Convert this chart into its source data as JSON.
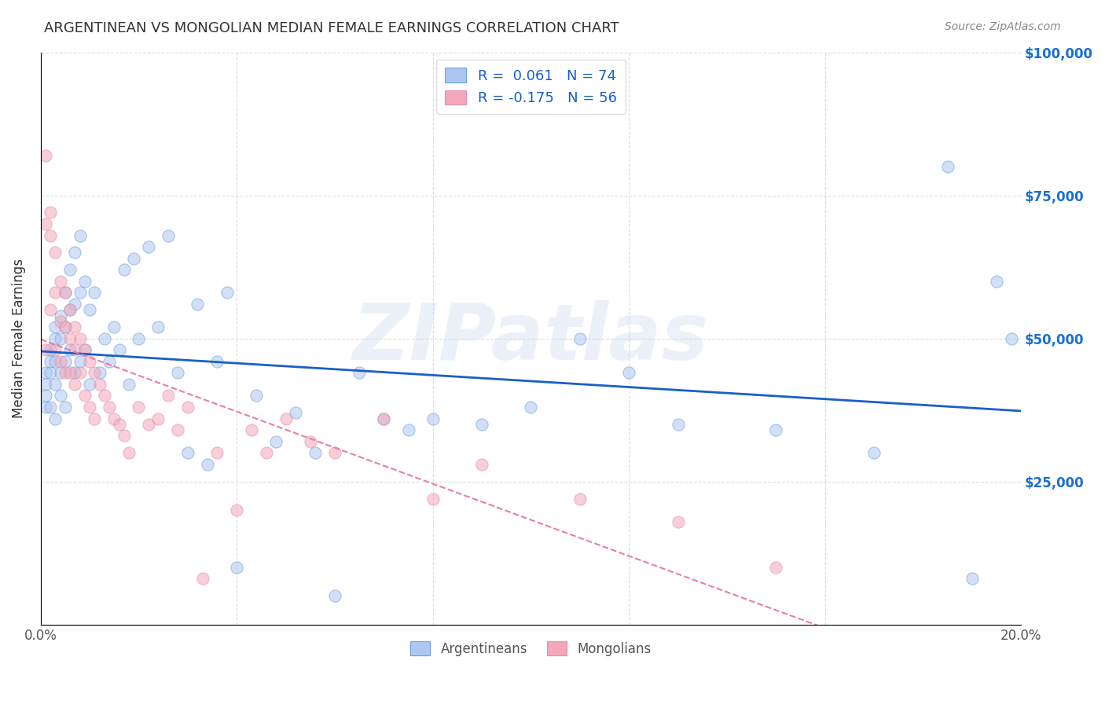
{
  "title": "ARGENTINEAN VS MONGOLIAN MEDIAN FEMALE EARNINGS CORRELATION CHART",
  "source": "Source: ZipAtlas.com",
  "xlabel_bottom": "",
  "ylabel": "Median Female Earnings",
  "x_min": 0.0,
  "x_max": 0.2,
  "y_min": 0,
  "y_max": 100000,
  "x_ticks": [
    0.0,
    0.04,
    0.08,
    0.12,
    0.16,
    0.2
  ],
  "x_tick_labels": [
    "0.0%",
    "",
    "",
    "",
    "",
    "20.0%"
  ],
  "y_ticks": [
    0,
    25000,
    50000,
    75000,
    100000
  ],
  "y_tick_labels": [
    "",
    "$25,000",
    "$50,000",
    "$75,000",
    "$100,000"
  ],
  "watermark": "ZIPatlas",
  "legend": {
    "blue_label": "R =  0.061   N = 74",
    "pink_label": "R = -0.175   N = 56",
    "blue_color": "#aec6f0",
    "pink_color": "#f4a7b9"
  },
  "blue_R": 0.061,
  "blue_N": 74,
  "pink_R": -0.175,
  "pink_N": 56,
  "blue_scatter": {
    "x": [
      0.001,
      0.001,
      0.001,
      0.001,
      0.002,
      0.002,
      0.002,
      0.002,
      0.003,
      0.003,
      0.003,
      0.003,
      0.003,
      0.004,
      0.004,
      0.004,
      0.004,
      0.005,
      0.005,
      0.005,
      0.005,
      0.006,
      0.006,
      0.006,
      0.007,
      0.007,
      0.007,
      0.008,
      0.008,
      0.008,
      0.009,
      0.009,
      0.01,
      0.01,
      0.011,
      0.012,
      0.013,
      0.014,
      0.015,
      0.016,
      0.017,
      0.018,
      0.019,
      0.02,
      0.022,
      0.024,
      0.026,
      0.028,
      0.03,
      0.032,
      0.034,
      0.036,
      0.038,
      0.04,
      0.044,
      0.048,
      0.052,
      0.056,
      0.06,
      0.065,
      0.07,
      0.075,
      0.08,
      0.09,
      0.1,
      0.11,
      0.12,
      0.13,
      0.15,
      0.17,
      0.185,
      0.19,
      0.195,
      0.198
    ],
    "y": [
      44000,
      42000,
      40000,
      38000,
      48000,
      46000,
      44000,
      38000,
      52000,
      50000,
      46000,
      42000,
      36000,
      54000,
      50000,
      44000,
      40000,
      58000,
      52000,
      46000,
      38000,
      62000,
      55000,
      48000,
      65000,
      56000,
      44000,
      68000,
      58000,
      46000,
      60000,
      48000,
      55000,
      42000,
      58000,
      44000,
      50000,
      46000,
      52000,
      48000,
      62000,
      42000,
      64000,
      50000,
      66000,
      52000,
      68000,
      44000,
      30000,
      56000,
      28000,
      46000,
      58000,
      10000,
      40000,
      32000,
      37000,
      30000,
      5000,
      44000,
      36000,
      34000,
      36000,
      35000,
      38000,
      50000,
      44000,
      35000,
      34000,
      30000,
      80000,
      8000,
      60000,
      50000
    ]
  },
  "pink_scatter": {
    "x": [
      0.001,
      0.001,
      0.001,
      0.002,
      0.002,
      0.002,
      0.003,
      0.003,
      0.003,
      0.004,
      0.004,
      0.004,
      0.005,
      0.005,
      0.005,
      0.006,
      0.006,
      0.006,
      0.007,
      0.007,
      0.007,
      0.008,
      0.008,
      0.009,
      0.009,
      0.01,
      0.01,
      0.011,
      0.011,
      0.012,
      0.013,
      0.014,
      0.015,
      0.016,
      0.017,
      0.018,
      0.02,
      0.022,
      0.024,
      0.026,
      0.028,
      0.03,
      0.033,
      0.036,
      0.04,
      0.043,
      0.046,
      0.05,
      0.055,
      0.06,
      0.07,
      0.08,
      0.09,
      0.11,
      0.13,
      0.15
    ],
    "y": [
      82000,
      70000,
      48000,
      72000,
      68000,
      55000,
      65000,
      58000,
      48000,
      60000,
      53000,
      46000,
      58000,
      52000,
      44000,
      55000,
      50000,
      44000,
      52000,
      48000,
      42000,
      50000,
      44000,
      48000,
      40000,
      46000,
      38000,
      44000,
      36000,
      42000,
      40000,
      38000,
      36000,
      35000,
      33000,
      30000,
      38000,
      35000,
      36000,
      40000,
      34000,
      38000,
      8000,
      30000,
      20000,
      34000,
      30000,
      36000,
      32000,
      30000,
      36000,
      22000,
      28000,
      22000,
      18000,
      10000
    ]
  },
  "blue_line_color": "#1a5fc8",
  "pink_line_color": "#e87fa0",
  "grid_color": "#cccccc",
  "background_color": "#ffffff",
  "scatter_alpha": 0.55,
  "scatter_size": 120,
  "title_color": "#333333",
  "axis_label_color": "#333333",
  "right_tick_color": "#1a6fd4",
  "watermark_color": "#d0ddf0",
  "watermark_alpha": 0.4
}
